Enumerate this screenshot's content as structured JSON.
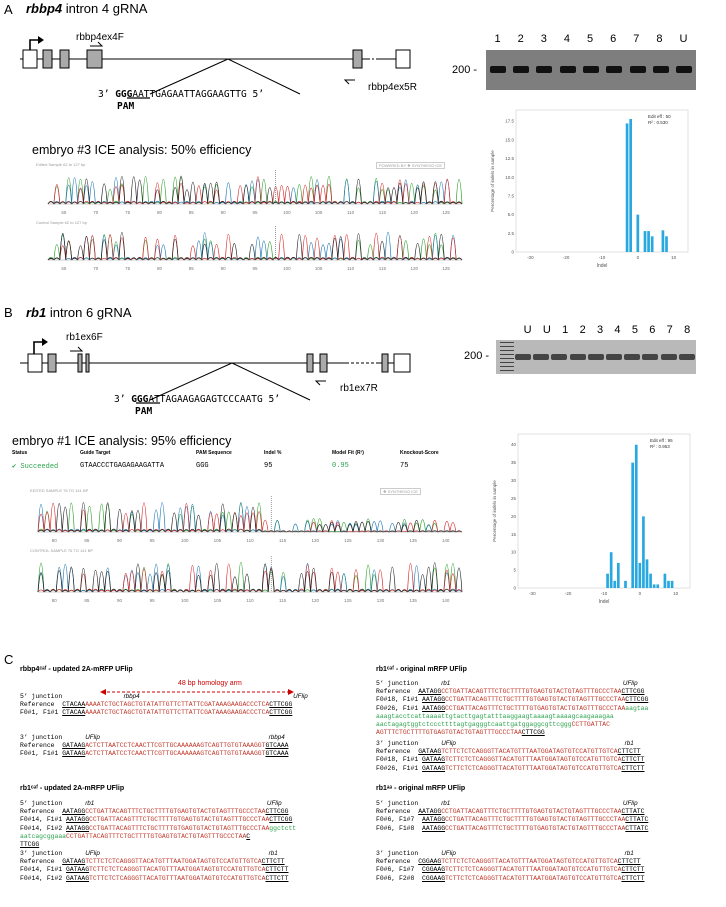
{
  "panelA": {
    "letter": "A",
    "title_gene": "rbbp4",
    "title_rest": " intron 4 gRNA",
    "primer_fwd": "rbbp4ex4F",
    "primer_rev": "rbbp4ex5R",
    "seq_3": "3’",
    "seq_pam": "GGG",
    "seq_rest": "AATTGAGAATTAGGAAGTTG",
    "seq_5": "5’",
    "pam_label": "PAM",
    "gel_lanes": [
      "1",
      "2",
      "3",
      "4",
      "5",
      "6",
      "7",
      "8",
      "U"
    ],
    "gel_marker": "200 -",
    "ice_title": "embryo #3 ICE analysis: 50% efficiency",
    "edited_label": "Edited Sample 62 to 127 bp",
    "control_label": "Control Sample 62 to 127 bp",
    "synthego": "POWERED BY ❖ SYNTHEGO   ICE",
    "xticks": [
      "65",
      "70",
      "75",
      "80",
      "85",
      "90",
      "95",
      "100",
      "105",
      "110",
      "115",
      "120",
      "125"
    ],
    "hist": {
      "fit": "Edit eff : 50",
      "r2": "R² : 0.530",
      "ylabel": "Percentage of indels in sample",
      "xlabel": "Indel",
      "xticks": [
        "-30",
        "-20",
        "-10",
        "0",
        "10"
      ],
      "yticks": [
        "0",
        "2.5",
        "5.0",
        "7.5",
        "10.0",
        "12.5",
        "15.0",
        "17.5"
      ]
    }
  },
  "panelB": {
    "letter": "B",
    "title_gene": "rb1",
    "title_rest": " intron 6 gRNA",
    "primer_fwd": "rb1ex6F",
    "primer_rev": "rb1ex7R",
    "seq_3": "3’",
    "seq_pam": "GGG",
    "seq_rest": "ATTAGAAGAGAGTCCCAATG",
    "seq_5": "5’",
    "pam_label": "PAM",
    "gel_lanes": [
      "U",
      "U",
      "1",
      "2",
      "3",
      "4",
      "5",
      "6",
      "7",
      "8"
    ],
    "gel_marker": "200 -",
    "ice_title": "embryo #1 ICE analysis: 95% efficiency",
    "table_headers": [
      "Status",
      "Guide Target",
      "PAM Sequence",
      "Indel %",
      "Model Fit (R²)",
      "Knockout-Score"
    ],
    "table_values": [
      "Succeeded",
      "GTAACCCTGAGAGAAGATTA",
      "GGG",
      "95",
      "0.95",
      "75"
    ],
    "edited_label": "EDITED SAMPLE 76 TO 141 BP",
    "control_label": "CONTROL SAMPLE 76 TO 141 BP",
    "synthego": "❖ SYNTHEGO   ICE",
    "xticks": [
      "80",
      "85",
      "90",
      "95",
      "100",
      "105",
      "110",
      "115",
      "120",
      "125",
      "130",
      "135",
      "140"
    ],
    "hist": {
      "fit": "Edit eff : 95",
      "r2": "R² : 0.953",
      "ylabel": "Percentage of indels in sample",
      "xlabel": "Indel",
      "xticks": [
        "-30",
        "-20",
        "-10",
        "0",
        "10"
      ],
      "yticks": [
        "0",
        "5",
        "10",
        "15",
        "20",
        "25",
        "30",
        "35",
        "40"
      ]
    }
  },
  "panelC": {
    "letter": "C",
    "q1_title": "rbbp4ᶜᵃᶠ - updated 2A-mRFP UFlip",
    "q2_title": "rb1ᶜᵃᶠ - original mRFP UFlip",
    "q3_title": "rb1ᶜᵃᶠ - updated 2A-mRFP UFlip",
    "q4_title": "rb1ᵃᵃ - original mRFP UFlip",
    "homology": "48 bp homology arm",
    "j5": "5’ junction",
    "j3": "3’ junction"
  }
}
